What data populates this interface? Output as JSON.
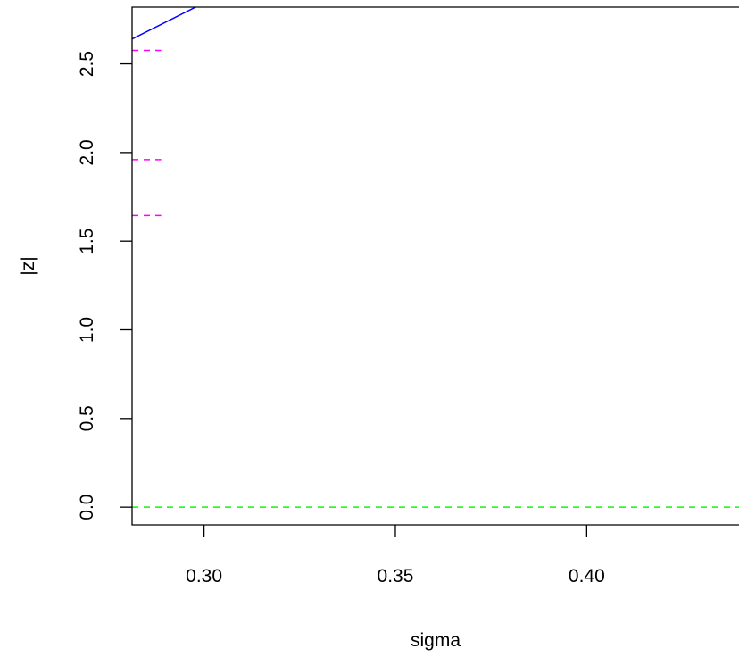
{
  "chart_data": {
    "type": "line",
    "xlabel": "sigma",
    "ylabel": "|z|",
    "xlim": [
      0.2812,
      0.4398
    ],
    "ylim": [
      -0.1,
      2.82
    ],
    "x_ticks": [
      {
        "value": 0.3,
        "label": "0.30"
      },
      {
        "value": 0.35,
        "label": "0.35"
      },
      {
        "value": 0.4,
        "label": "0.40"
      }
    ],
    "y_ticks": [
      {
        "value": 0.0,
        "label": "0.0"
      },
      {
        "value": 0.5,
        "label": "0.5"
      },
      {
        "value": 1.0,
        "label": "1.0"
      },
      {
        "value": 1.5,
        "label": "1.5"
      },
      {
        "value": 2.0,
        "label": "2.0"
      },
      {
        "value": 2.5,
        "label": "2.5"
      }
    ],
    "series": [
      {
        "color": "#0000ff",
        "style": "solid",
        "points": [
          [
            0.2812,
            2.64
          ],
          [
            0.2978,
            2.82
          ]
        ]
      }
    ],
    "reference_lines": [
      {
        "y": 0.0,
        "color": "#00ff00",
        "style": "dashed",
        "x_range": [
          0.2812,
          0.4398
        ]
      },
      {
        "y": 1.645,
        "color": "#ff00ff",
        "style": "dashed",
        "x_range": [
          0.2812,
          0.2888
        ]
      },
      {
        "y": 1.96,
        "color": "#ff00ff",
        "style": "dashed",
        "x_range": [
          0.2812,
          0.2888
        ]
      },
      {
        "y": 2.576,
        "color": "#ff00ff",
        "style": "dashed",
        "x_range": [
          0.2812,
          0.2888
        ]
      }
    ],
    "grid": false,
    "legend": "none"
  }
}
